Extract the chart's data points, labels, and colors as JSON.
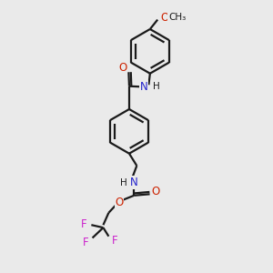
{
  "bg_color": "#eaeaea",
  "bond_color": "#1a1a1a",
  "oxygen_color": "#cc2200",
  "nitrogen_color": "#2222cc",
  "fluorine_color": "#cc22cc",
  "line_width": 1.6,
  "dbo": 0.08,
  "figsize": [
    3.0,
    3.0
  ],
  "dpi": 100,
  "xlim": [
    0,
    10
  ],
  "ylim": [
    0,
    10
  ]
}
